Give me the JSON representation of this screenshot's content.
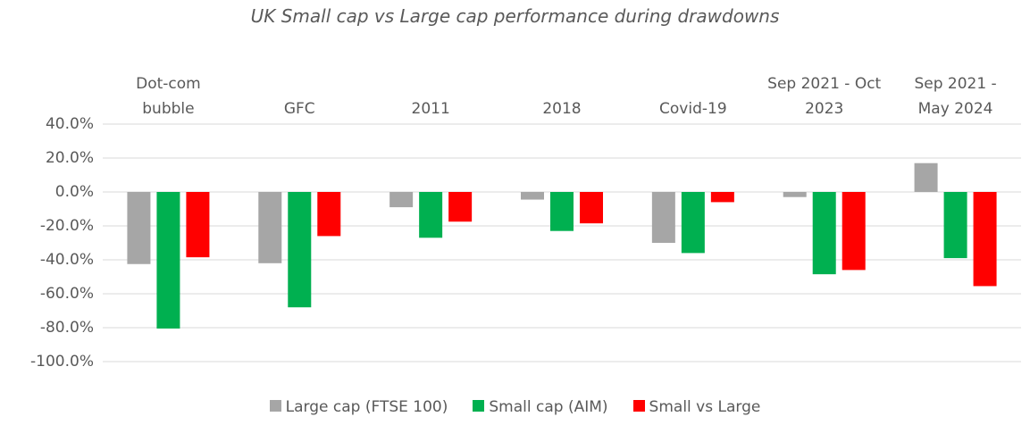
{
  "chart_data": {
    "type": "bar",
    "title": "UK Small cap vs Large cap performance during drawdowns",
    "categories": [
      "Dot-com bubble",
      "GFC",
      "2011",
      "2018",
      "Covid-19",
      "Sep 2021 - Oct 2023",
      "Sep 2021 - May 2024"
    ],
    "series": [
      {
        "name": "Large cap (FTSE 100)",
        "color": "#a6a6a6",
        "values": [
          -42.5,
          -42,
          -9,
          -4.5,
          -30,
          -3,
          17
        ]
      },
      {
        "name": "Small cap (AIM)",
        "color": "#00b050",
        "values": [
          -80.5,
          -68,
          -27,
          -23,
          -36,
          -48.5,
          -39
        ]
      },
      {
        "name": "Small vs Large",
        "color": "#ff0000",
        "values": [
          -38.5,
          -26,
          -17.5,
          -18.5,
          -6,
          -46,
          -55.5
        ]
      }
    ],
    "ylim": [
      -100,
      40
    ],
    "yticks": [
      {
        "value": -100,
        "label": "-100.0%"
      },
      {
        "value": -80,
        "label": "-80.0%"
      },
      {
        "value": -60,
        "label": "-60.0%"
      },
      {
        "value": -40,
        "label": "-40.0%"
      },
      {
        "value": -20,
        "label": "-20.0%"
      },
      {
        "value": 0,
        "label": "0.0%"
      },
      {
        "value": 20,
        "label": "20.0%"
      },
      {
        "value": 40,
        "label": "40.0%"
      }
    ],
    "grid": true,
    "legend": "bottom"
  }
}
